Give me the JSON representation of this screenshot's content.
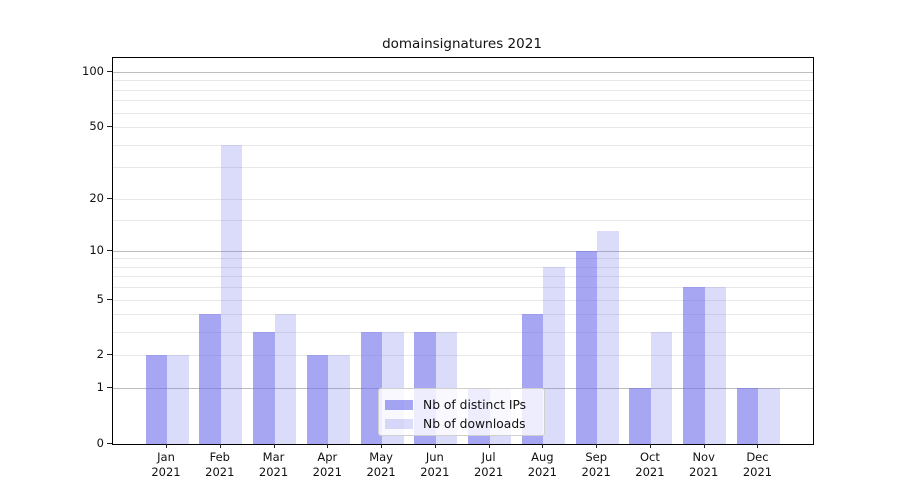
{
  "title": "domainsignatures 2021",
  "chart_data": {
    "type": "bar",
    "title": "domainsignatures 2021",
    "months": [
      "Jan",
      "Feb",
      "Mar",
      "Apr",
      "May",
      "Jun",
      "Jul",
      "Aug",
      "Sep",
      "Oct",
      "Nov",
      "Dec"
    ],
    "year": "2021",
    "series": [
      {
        "name": "Nb of distinct IPs",
        "values": [
          2,
          4,
          3,
          2,
          3,
          3,
          1,
          4,
          10,
          1,
          6,
          1
        ],
        "color": "rgba(112,112,235,0.62)",
        "color_over_white": "#a6a6f7"
      },
      {
        "name": "Nb of downloads",
        "values": [
          2,
          40,
          4,
          2,
          3,
          3,
          1,
          8,
          13,
          3,
          6,
          1
        ],
        "color": "rgba(112,112,235,0.25)",
        "color_over_white": "#dbdbfa"
      }
    ],
    "y_axis": {
      "scale": "log1p",
      "major_ticks": [
        0,
        1,
        2,
        5,
        10,
        20,
        50,
        100
      ],
      "minor_ticks": [
        3,
        4,
        6,
        7,
        8,
        9,
        15,
        30,
        40,
        60,
        70,
        80,
        90
      ],
      "decade_gridlines": [
        1,
        10,
        100
      ],
      "ylim": [
        0,
        119
      ]
    },
    "grid": true,
    "legend_position": "lower center",
    "colors": {
      "grid_minor": "#e8e8e8",
      "grid_decade": "#bdbdbd",
      "spine": "#000000",
      "text": "#111111"
    }
  }
}
